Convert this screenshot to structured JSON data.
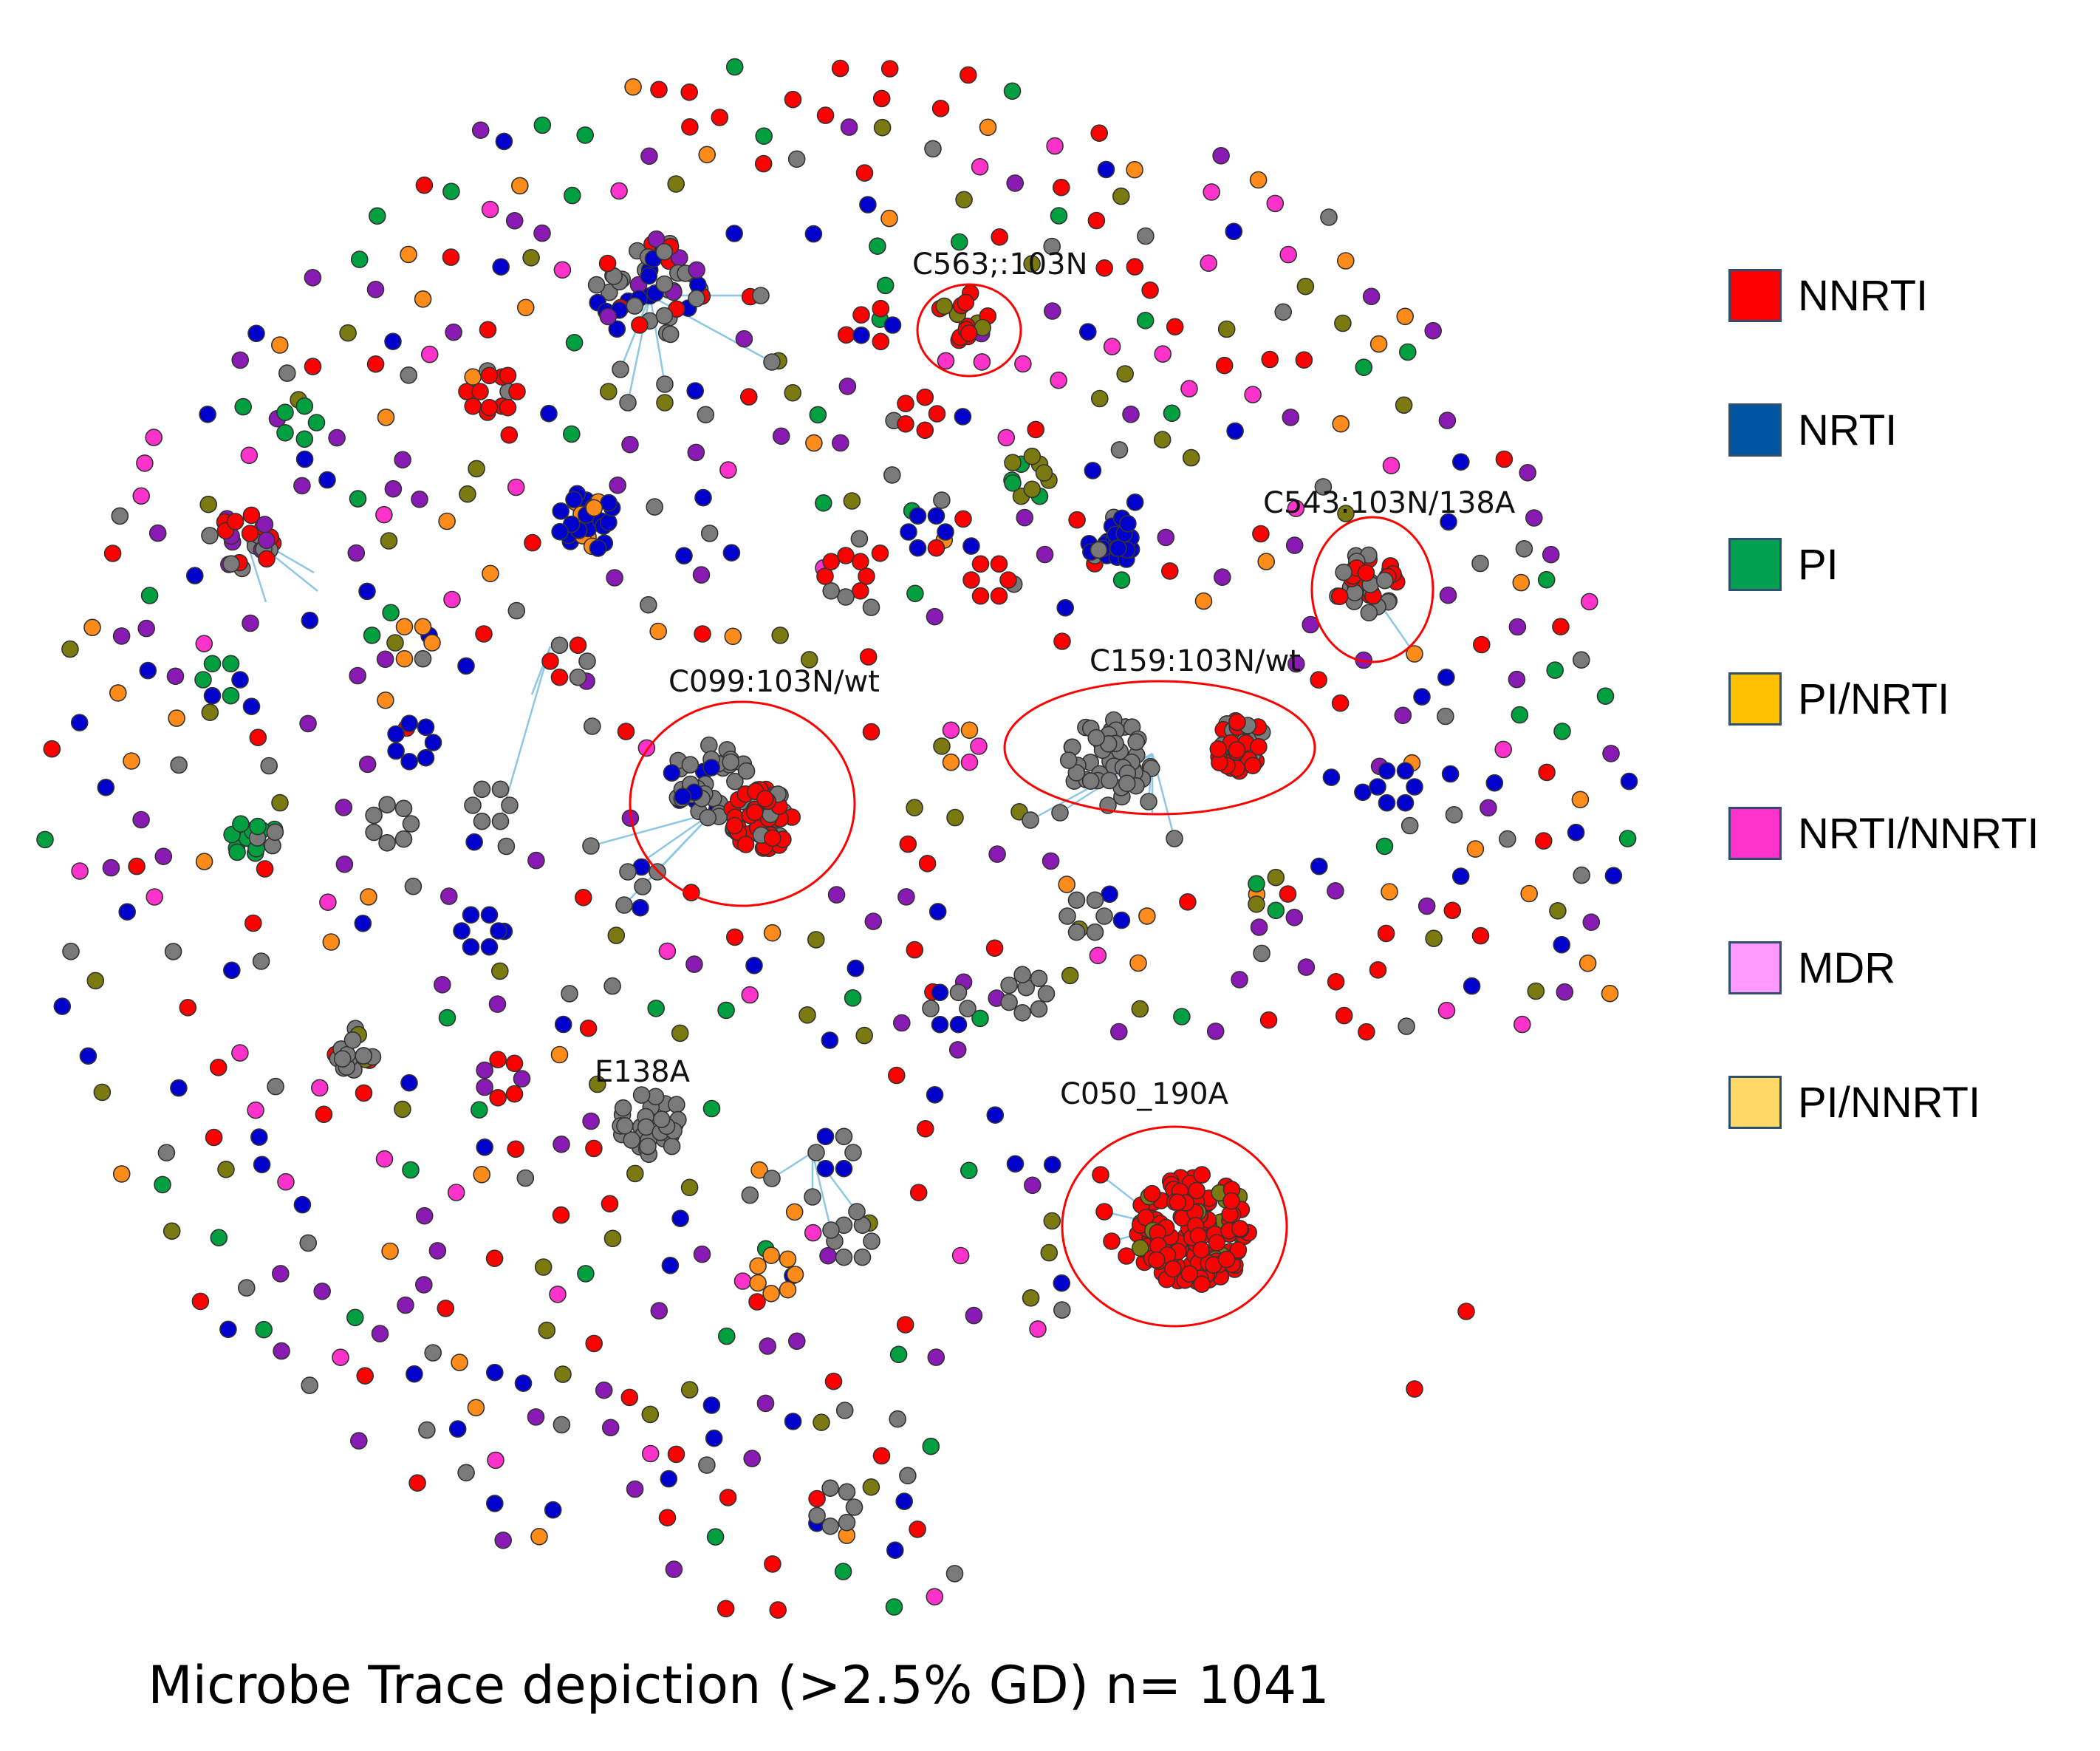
{
  "figure": {
    "caption": "Microbe Trace depiction  (>2.5% GD) n= 1041"
  },
  "colors": {
    "NNRTI": "#ff0000",
    "NRTI": "#0000cc",
    "PI": "#00a040",
    "PI/NRTI": "#ff8c1a",
    "NRTI/NNRTI": "#ff33cc",
    "MDR": "#ff99ff",
    "PI/NNRTI": "#ffd966",
    "purple": "#8a1ab4",
    "olive": "#7a7a10",
    "gray": "#7a7a7a",
    "edge": "#8ec7e6",
    "highlight": "#ff0000"
  },
  "legend": [
    {
      "label": "NNRTI",
      "color": "#ff0000"
    },
    {
      "label": "NRTI",
      "color": "#0055a0"
    },
    {
      "label": "PI",
      "color": "#00a050"
    },
    {
      "label": "PI/NRTI",
      "color": "#ffc000"
    },
    {
      "label": "NRTI/NNRTI",
      "color": "#ff33cc"
    },
    {
      "label": "MDR",
      "color": "#ff99ff"
    },
    {
      "label": "PI/NNRTI",
      "color": "#ffd966"
    }
  ],
  "cluster_labels": [
    {
      "id": "c563",
      "text": "C563;:103N"
    },
    {
      "id": "c543",
      "text": "C543:103N/138A"
    },
    {
      "id": "c099",
      "text": "C099:103N/wt"
    },
    {
      "id": "c159",
      "text": "C159:103N/wt"
    },
    {
      "id": "e138a",
      "text": "E138A"
    },
    {
      "id": "c050",
      "text": "C050_190A"
    }
  ]
}
